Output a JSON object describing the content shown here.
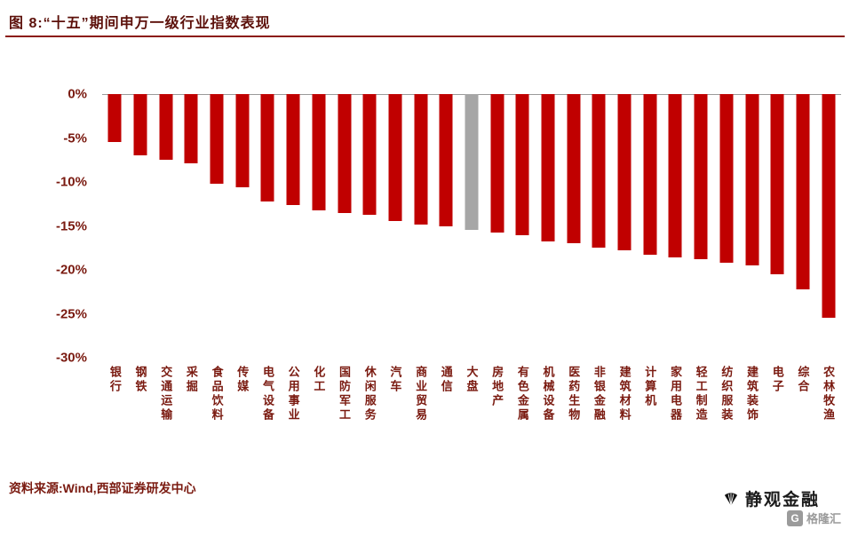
{
  "header": {
    "title": "图 8:“十五”期间申万一级行业指数表现"
  },
  "chart_data": {
    "type": "bar",
    "title": "“十五”期间申万一级行业指数表现",
    "xlabel": "",
    "ylabel": "",
    "legend": "none",
    "grid": false,
    "ylim": [
      -30,
      0
    ],
    "yticks": [
      "0%",
      "-5%",
      "-10%",
      "-15%",
      "-20%",
      "-25%",
      "-30%"
    ],
    "categories": [
      "银行",
      "钢铁",
      "交通运输",
      "采掘",
      "食品饮料",
      "传媒",
      "电气设备",
      "公用事业",
      "化工",
      "国防军工",
      "休闲服务",
      "汽车",
      "商业贸易",
      "通信",
      "大盘",
      "房地产",
      "有色金属",
      "机械设备",
      "医药生物",
      "非银金融",
      "建筑材料",
      "计算机",
      "家用电器",
      "轻工制造",
      "纺织服装",
      "建筑装饰",
      "电子",
      "综合",
      "农林牧渔"
    ],
    "values": [
      -5.5,
      -7.0,
      -7.5,
      -7.9,
      -10.2,
      -10.6,
      -12.2,
      -12.6,
      -13.2,
      -13.5,
      -13.7,
      -14.4,
      -14.8,
      -15.0,
      -15.5,
      -15.8,
      -16.1,
      -16.8,
      -17.0,
      -17.5,
      -17.8,
      -18.3,
      -18.6,
      -18.8,
      -19.2,
      -19.5,
      -20.5,
      -22.2,
      -25.5
    ],
    "highlight_category": "大盘",
    "bar_color": "#c00000",
    "highlight_color": "#a6a6a6",
    "axis_text_color": "#7a1a10"
  },
  "footer": {
    "source": "资料来源:Wind,西部证券研发中心",
    "watermark": "静观金融",
    "logo_text": "格隆汇"
  }
}
